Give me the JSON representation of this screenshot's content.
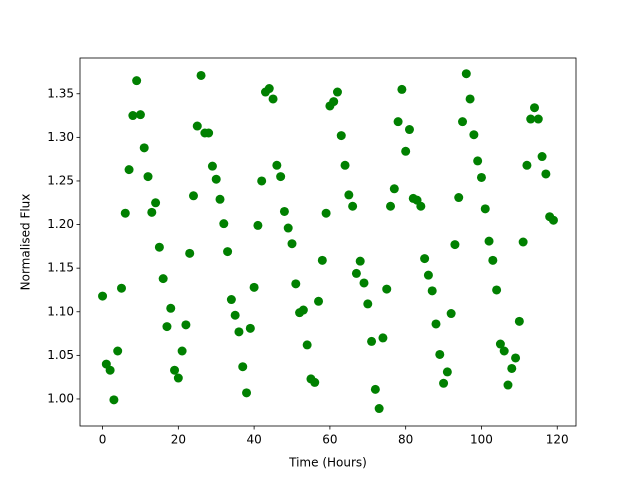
{
  "chart_data": {
    "type": "scatter",
    "xlabel": "Time (Hours)",
    "ylabel": "Normalised Flux",
    "color": "#008000",
    "x": [
      0,
      1,
      2,
      3,
      4,
      5,
      6,
      7,
      8,
      9,
      10,
      11,
      12,
      13,
      14,
      15,
      16,
      17,
      18,
      19,
      20,
      21,
      22,
      23,
      24,
      25,
      26,
      27,
      28,
      29,
      30,
      31,
      32,
      33,
      34,
      35,
      36,
      37,
      38,
      39,
      40,
      41,
      42,
      43,
      44,
      45,
      46,
      47,
      48,
      49,
      50,
      51,
      52,
      53,
      54,
      55,
      56,
      57,
      58,
      59,
      60,
      61,
      62,
      63,
      64,
      65,
      66,
      67,
      68,
      69,
      70,
      71,
      72,
      73,
      74,
      75,
      76,
      77,
      78,
      79,
      80,
      81,
      82,
      83,
      84,
      85,
      86,
      87,
      88,
      89,
      90,
      91,
      92,
      93,
      94,
      95,
      96,
      97,
      98,
      99,
      100,
      101,
      102,
      103,
      104,
      105,
      106,
      107,
      108,
      109,
      110,
      111,
      112,
      113,
      114,
      115,
      116,
      117,
      118,
      119
    ],
    "values": [
      1.118,
      1.04,
      1.033,
      0.999,
      1.055,
      1.127,
      1.213,
      1.263,
      1.325,
      1.365,
      1.326,
      1.288,
      1.255,
      1.214,
      1.225,
      1.174,
      1.138,
      1.083,
      1.104,
      1.033,
      1.024,
      1.055,
      1.085,
      1.167,
      1.233,
      1.313,
      1.371,
      1.305,
      1.305,
      1.267,
      1.252,
      1.229,
      1.201,
      1.169,
      1.114,
      1.096,
      1.077,
      1.037,
      1.007,
      1.081,
      1.128,
      1.199,
      1.25,
      1.352,
      1.356,
      1.344,
      1.268,
      1.255,
      1.215,
      1.196,
      1.178,
      1.132,
      1.099,
      1.102,
      1.062,
      1.023,
      1.019,
      1.112,
      1.159,
      1.213,
      1.336,
      1.341,
      1.352,
      1.302,
      1.268,
      1.234,
      1.221,
      1.144,
      1.158,
      1.133,
      1.109,
      1.066,
      1.011,
      0.989,
      1.07,
      1.126,
      1.221,
      1.241,
      1.318,
      1.355,
      1.284,
      1.309,
      1.23,
      1.228,
      1.221,
      1.161,
      1.142,
      1.124,
      1.086,
      1.051,
      1.018,
      1.031,
      1.098,
      1.177,
      1.231,
      1.318,
      1.373,
      1.344,
      1.303,
      1.273,
      1.254,
      1.218,
      1.181,
      1.159,
      1.125,
      1.063,
      1.055,
      1.016,
      1.035,
      1.047,
      1.089,
      1.18,
      1.268,
      1.321,
      1.334,
      1.321,
      1.278,
      1.258,
      1.209,
      1.205
    ],
    "xlim": [
      -5.95,
      124.95
    ],
    "xticks": [
      0,
      20,
      40,
      60,
      80,
      100,
      120
    ],
    "ylim": [
      0.969,
      1.391
    ],
    "yticks": [
      {
        "value": 1.0,
        "label": "1.00"
      },
      1.05,
      {
        "value": 1.1,
        "label": "1.10"
      },
      1.15,
      {
        "value": 1.2,
        "label": "1.20"
      },
      1.25,
      {
        "value": 1.3,
        "label": "1.30"
      },
      1.35
    ]
  }
}
